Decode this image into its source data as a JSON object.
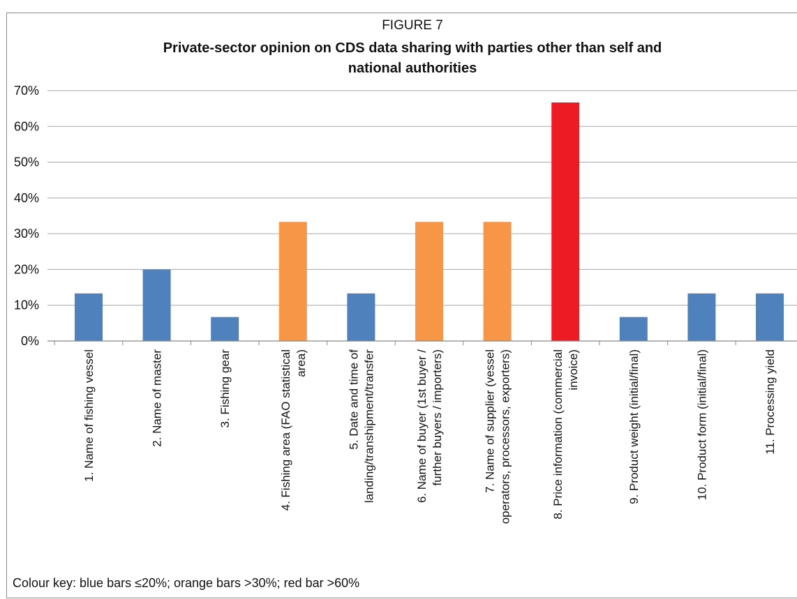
{
  "figure": {
    "label": "FIGURE 7",
    "title_lines": [
      "Private-sector opinion on CDS data sharing with parties other than self and",
      "national authorities"
    ],
    "colour_key": "Colour key: blue bars ≤20%; orange bars >30%; red bar >60%"
  },
  "chart_data": {
    "type": "bar",
    "title": "Private-sector opinion on CDS data sharing with parties other than self and national authorities",
    "xlabel": "",
    "ylabel": "",
    "ylim": [
      0,
      70
    ],
    "yticks": [
      "0%",
      "10%",
      "20%",
      "30%",
      "40%",
      "50%",
      "60%",
      "70%"
    ],
    "grid": true,
    "legend": "none",
    "categories": [
      [
        "1.   Name of fishing vessel"
      ],
      [
        "2.   Name of master"
      ],
      [
        "3.   Fishing gear"
      ],
      [
        "4.   Fishing area (FAO statistical",
        "area)"
      ],
      [
        "5.   Date and time of",
        "landing/transhipment/transfer"
      ],
      [
        "6.   Name of buyer (1st buyer /",
        "further buyers / importers)"
      ],
      [
        "7.   Name of supplier (vessel",
        "operators, processors, exporters)"
      ],
      [
        "8.   Price information (commercial",
        "invoice)"
      ],
      [
        "9.   Product weight (initial/final)"
      ],
      [
        "10. Product form (initial/final)"
      ],
      [
        "11. Processing yield"
      ]
    ],
    "values": [
      13.3,
      20.0,
      6.7,
      33.3,
      13.3,
      33.3,
      33.3,
      66.7,
      6.7,
      13.3,
      13.3
    ],
    "bar_colors": [
      "#4f81bd",
      "#4f81bd",
      "#4f81bd",
      "#f79646",
      "#4f81bd",
      "#f79646",
      "#f79646",
      "#ed1c24",
      "#4f81bd",
      "#4f81bd",
      "#4f81bd"
    ],
    "colors": {
      "blue": "#4f81bd",
      "orange": "#f79646",
      "red": "#ed1c24",
      "grid": "#a6a6a6",
      "axis": "#868686",
      "text": "#111111"
    }
  }
}
